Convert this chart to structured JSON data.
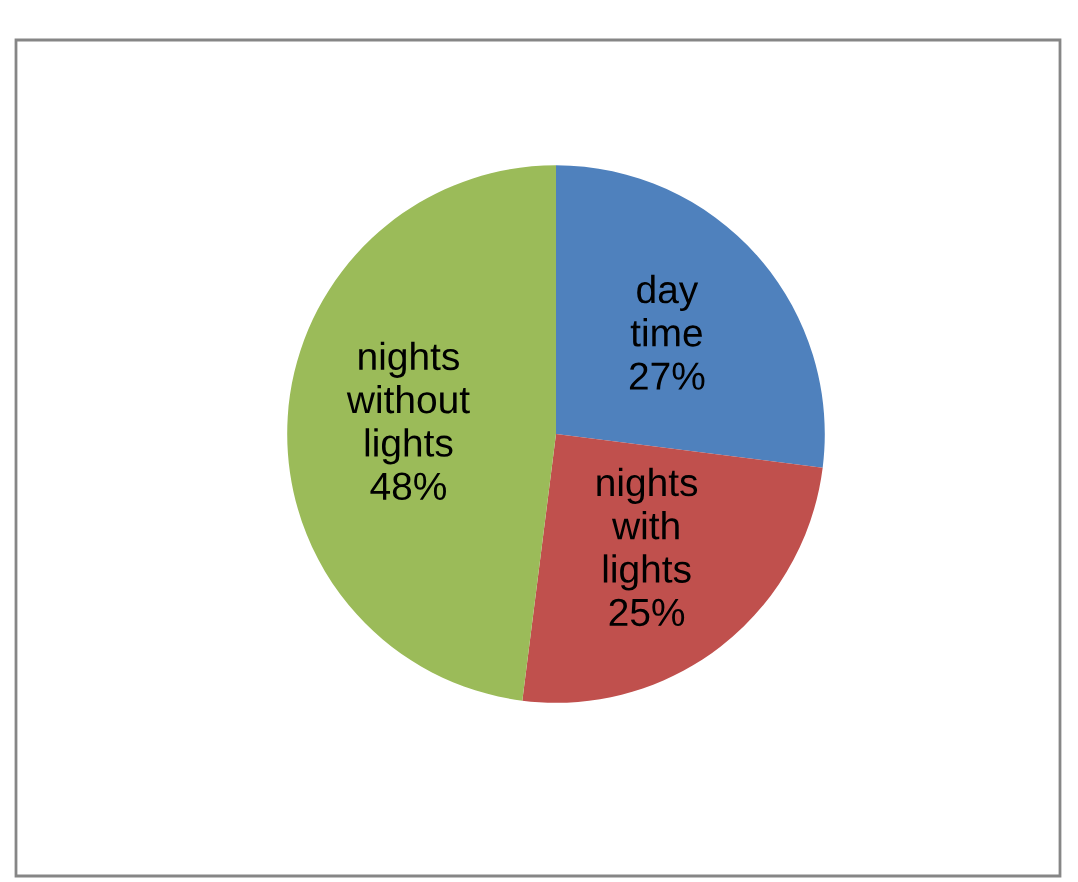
{
  "chart_data": {
    "type": "pie",
    "categories": [
      "day time",
      "nights with lights",
      "nights without lights"
    ],
    "values": [
      27,
      25,
      48
    ],
    "colors": [
      "#4f81bd",
      "#c0504d",
      "#9bbb59"
    ],
    "value_labels": [
      "27%",
      "25%",
      "48%"
    ],
    "legend": false
  }
}
